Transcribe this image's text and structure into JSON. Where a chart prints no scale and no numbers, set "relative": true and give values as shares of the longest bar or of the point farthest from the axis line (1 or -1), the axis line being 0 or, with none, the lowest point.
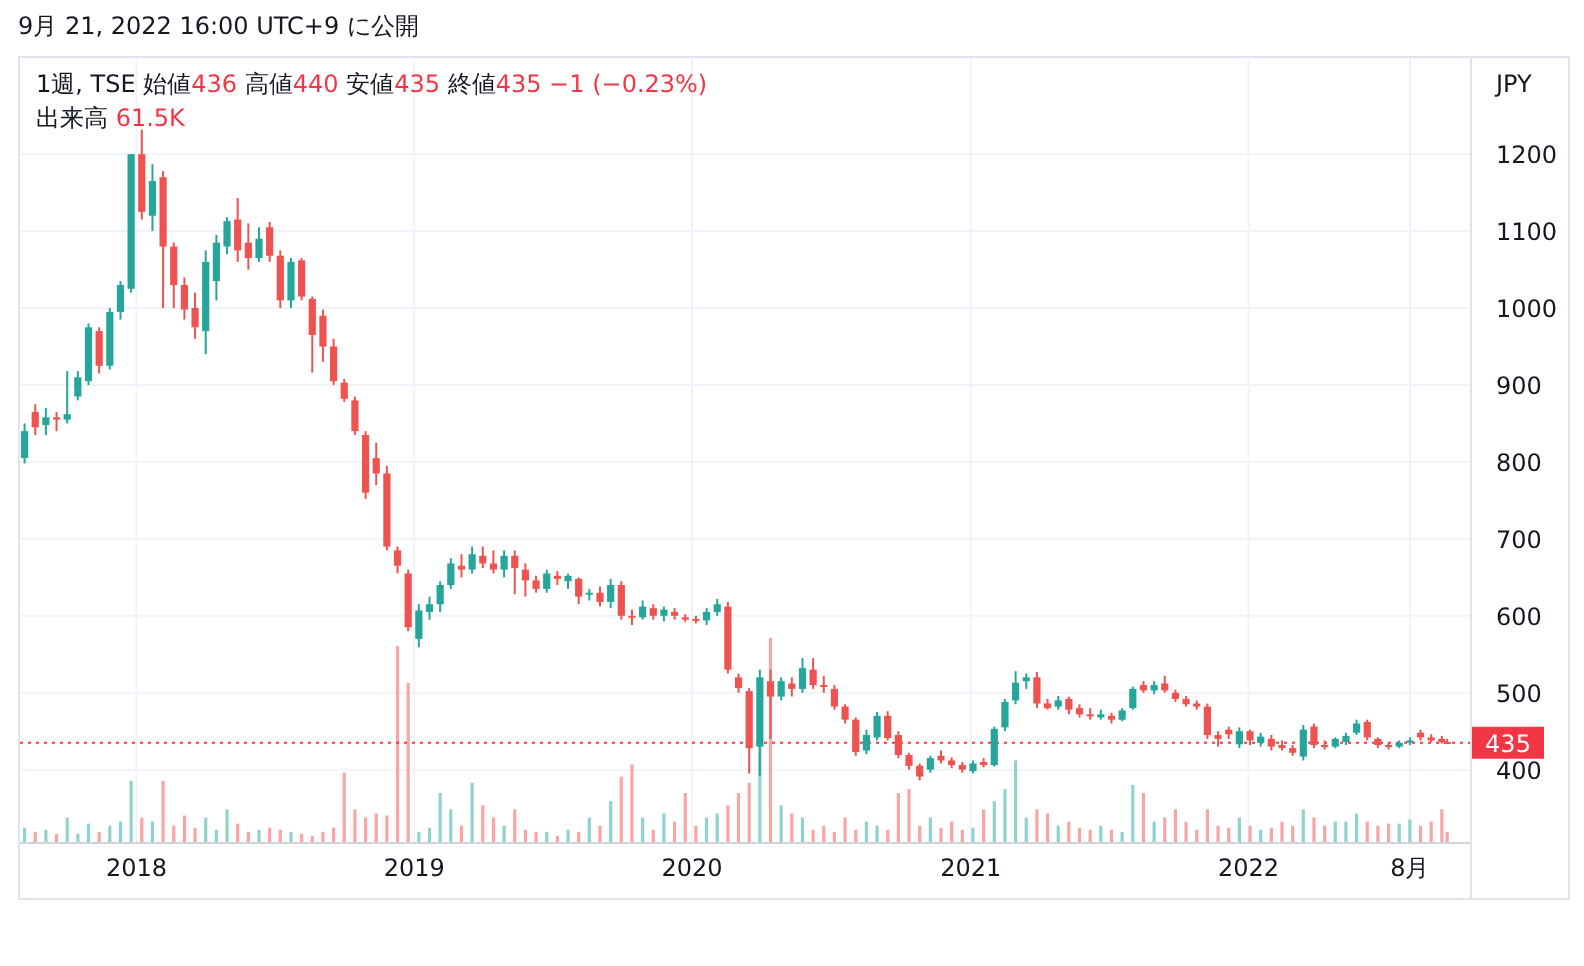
{
  "chart_data": [
    {
      "type": "candlestick",
      "title": "9月 21, 2022 16:00 UTC+9 に公開",
      "subtitle": "1週, TSE 始値436 高値440 安値435 終値435 −1 (−0.23%)",
      "ylabel": "JPY",
      "x": [
        "2017-08-07",
        "2017-08-21",
        "2017-09-04",
        "2017-09-18",
        "2017-10-02",
        "2017-10-16",
        "2017-10-30",
        "2017-11-13",
        "2017-11-27",
        "2017-12-11",
        "2017-12-25",
        "2018-01-08",
        "2018-01-22",
        "2018-02-05",
        "2018-02-19",
        "2018-03-05",
        "2018-03-19",
        "2018-04-02",
        "2018-04-16",
        "2018-04-30",
        "2018-05-14",
        "2018-05-28",
        "2018-06-11",
        "2018-06-25",
        "2018-07-09",
        "2018-07-23",
        "2018-08-06",
        "2018-08-20",
        "2018-09-03",
        "2018-09-17",
        "2018-10-01",
        "2018-10-15",
        "2018-10-29",
        "2018-11-12",
        "2018-11-26",
        "2018-12-10",
        "2018-12-24",
        "2019-01-07",
        "2019-01-21",
        "2019-02-04",
        "2019-02-18",
        "2019-03-04",
        "2019-03-18",
        "2019-04-01",
        "2019-04-15",
        "2019-04-29",
        "2019-05-13",
        "2019-05-27",
        "2019-06-10",
        "2019-06-24",
        "2019-07-08",
        "2019-07-22",
        "2019-08-05",
        "2019-08-19",
        "2019-09-02",
        "2019-09-16",
        "2019-09-30",
        "2019-10-14",
        "2019-10-28",
        "2019-11-11",
        "2019-11-25",
        "2019-12-09",
        "2019-12-23",
        "2020-01-06",
        "2020-01-20",
        "2020-02-03",
        "2020-02-17",
        "2020-03-02",
        "2020-03-16",
        "2020-03-30",
        "2020-04-13",
        "2020-04-27",
        "2020-05-11",
        "2020-05-25",
        "2020-06-08",
        "2020-06-22",
        "2020-07-06",
        "2020-07-20",
        "2020-08-03",
        "2020-08-17",
        "2020-08-31",
        "2020-09-14",
        "2020-09-28",
        "2020-10-12",
        "2020-10-26",
        "2020-11-09",
        "2020-11-23",
        "2020-12-07",
        "2020-12-21",
        "2021-01-04",
        "2021-01-18",
        "2021-02-01",
        "2021-02-15",
        "2021-03-01",
        "2021-03-15",
        "2021-03-29",
        "2021-04-12",
        "2021-04-26",
        "2021-05-10",
        "2021-05-24",
        "2021-06-07",
        "2021-06-21",
        "2021-07-05",
        "2021-07-19",
        "2021-08-02",
        "2021-08-16",
        "2021-08-30",
        "2021-09-13",
        "2021-09-27",
        "2021-10-11",
        "2021-10-25",
        "2021-11-08",
        "2021-11-22",
        "2021-12-06",
        "2021-12-20",
        "2022-01-03",
        "2022-01-17",
        "2022-01-31",
        "2022-02-14",
        "2022-02-28",
        "2022-03-14",
        "2022-03-28",
        "2022-04-11",
        "2022-04-25",
        "2022-05-09",
        "2022-05-23",
        "2022-06-06",
        "2022-06-20",
        "2022-07-04",
        "2022-07-18",
        "2022-08-01",
        "2022-08-15",
        "2022-08-29",
        "2022-09-12",
        "2022-09-19"
      ],
      "ohlc": [
        [
          805,
          850,
          798,
          840
        ],
        [
          865,
          875,
          835,
          845
        ],
        [
          848,
          870,
          835,
          858
        ],
        [
          858,
          865,
          840,
          855
        ],
        [
          855,
          918,
          850,
          862
        ],
        [
          885,
          918,
          880,
          910
        ],
        [
          905,
          980,
          900,
          975
        ],
        [
          970,
          975,
          915,
          925
        ],
        [
          925,
          1000,
          920,
          995
        ],
        [
          995,
          1035,
          985,
          1030
        ],
        [
          1025,
          1200,
          1020,
          1200
        ],
        [
          1200,
          1232,
          1115,
          1125
        ],
        [
          1120,
          1187,
          1100,
          1165
        ],
        [
          1170,
          1178,
          1000,
          1080
        ],
        [
          1080,
          1085,
          1000,
          1030
        ],
        [
          1030,
          1040,
          985,
          998
        ],
        [
          1000,
          1020,
          960,
          975
        ],
        [
          970,
          1075,
          940,
          1060
        ],
        [
          1035,
          1095,
          1010,
          1085
        ],
        [
          1080,
          1118,
          1070,
          1113
        ],
        [
          1115,
          1143,
          1060,
          1075
        ],
        [
          1085,
          1110,
          1050,
          1065
        ],
        [
          1065,
          1105,
          1060,
          1090
        ],
        [
          1105,
          1112,
          1060,
          1068
        ],
        [
          1068,
          1075,
          1000,
          1010
        ],
        [
          1010,
          1065,
          1000,
          1060
        ],
        [
          1062,
          1065,
          1010,
          1015
        ],
        [
          1012,
          1015,
          916,
          965
        ],
        [
          990,
          998,
          930,
          950
        ],
        [
          950,
          960,
          900,
          905
        ],
        [
          903,
          908,
          878,
          882
        ],
        [
          880,
          885,
          835,
          840
        ],
        [
          835,
          840,
          752,
          760
        ],
        [
          805,
          825,
          770,
          785
        ],
        [
          785,
          795,
          685,
          690
        ],
        [
          685,
          690,
          655,
          665
        ],
        [
          655,
          660,
          580,
          585
        ],
        [
          570,
          615,
          559,
          607
        ],
        [
          605,
          625,
          595,
          615
        ],
        [
          615,
          645,
          605,
          640
        ],
        [
          640,
          675,
          635,
          668
        ],
        [
          665,
          680,
          650,
          660
        ],
        [
          660,
          690,
          655,
          680
        ],
        [
          678,
          690,
          662,
          668
        ],
        [
          668,
          685,
          655,
          660
        ],
        [
          660,
          685,
          650,
          678
        ],
        [
          678,
          685,
          628,
          662
        ],
        [
          660,
          668,
          625,
          646
        ],
        [
          646,
          652,
          630,
          635
        ],
        [
          635,
          660,
          630,
          655
        ],
        [
          652,
          658,
          640,
          648
        ],
        [
          645,
          655,
          635,
          652
        ],
        [
          648,
          650,
          615,
          625
        ],
        [
          628,
          635,
          620,
          630
        ],
        [
          630,
          638,
          612,
          618
        ],
        [
          618,
          648,
          610,
          640
        ],
        [
          640,
          645,
          595,
          600
        ],
        [
          600,
          608,
          588,
          598
        ],
        [
          598,
          620,
          595,
          612
        ],
        [
          610,
          615,
          595,
          600
        ],
        [
          600,
          612,
          593,
          608
        ],
        [
          605,
          610,
          595,
          600
        ],
        [
          598,
          602,
          592,
          595
        ],
        [
          596,
          600,
          590,
          594
        ],
        [
          594,
          610,
          588,
          605
        ],
        [
          605,
          622,
          600,
          615
        ],
        [
          612,
          618,
          525,
          530
        ],
        [
          520,
          525,
          500,
          506
        ],
        [
          502,
          506,
          395,
          428
        ],
        [
          430,
          530,
          392,
          520
        ],
        [
          515,
          530,
          440,
          495
        ],
        [
          495,
          520,
          490,
          515
        ],
        [
          512,
          520,
          495,
          505
        ],
        [
          505,
          545,
          500,
          532
        ],
        [
          530,
          545,
          505,
          510
        ],
        [
          510,
          522,
          500,
          508
        ],
        [
          505,
          510,
          478,
          482
        ],
        [
          482,
          485,
          460,
          465
        ],
        [
          465,
          468,
          418,
          423
        ],
        [
          425,
          452,
          420,
          445
        ],
        [
          442,
          475,
          438,
          470
        ],
        [
          470,
          476,
          438,
          441
        ],
        [
          445,
          450,
          415,
          419
        ],
        [
          419,
          422,
          400,
          405
        ],
        [
          405,
          408,
          386,
          391
        ],
        [
          400,
          418,
          396,
          415
        ],
        [
          418,
          425,
          408,
          412
        ],
        [
          412,
          416,
          402,
          406
        ],
        [
          406,
          410,
          396,
          400
        ],
        [
          398,
          412,
          395,
          408
        ],
        [
          410,
          415,
          403,
          406
        ],
        [
          406,
          456,
          404,
          453
        ],
        [
          455,
          492,
          450,
          488
        ],
        [
          490,
          528,
          485,
          513
        ],
        [
          515,
          525,
          505,
          520
        ],
        [
          520,
          527,
          480,
          486
        ],
        [
          486,
          492,
          478,
          480
        ],
        [
          482,
          496,
          478,
          490
        ],
        [
          492,
          495,
          472,
          478
        ],
        [
          480,
          485,
          468,
          472
        ],
        [
          472,
          480,
          465,
          470
        ],
        [
          468,
          478,
          465,
          472
        ],
        [
          470,
          474,
          460,
          465
        ],
        [
          465,
          480,
          463,
          477
        ],
        [
          480,
          508,
          478,
          505
        ],
        [
          510,
          515,
          500,
          503
        ],
        [
          503,
          515,
          498,
          510
        ],
        [
          512,
          522,
          500,
          503
        ],
        [
          500,
          504,
          488,
          492
        ],
        [
          492,
          496,
          482,
          485
        ],
        [
          486,
          490,
          478,
          482
        ],
        [
          482,
          486,
          440,
          445
        ],
        [
          445,
          450,
          430,
          440
        ],
        [
          452,
          456,
          440,
          446
        ],
        [
          433,
          455,
          428,
          450
        ],
        [
          450,
          452,
          432,
          438
        ],
        [
          435,
          448,
          430,
          443
        ],
        [
          440,
          445,
          425,
          430
        ],
        [
          432,
          438,
          425,
          428
        ],
        [
          428,
          432,
          418,
          422
        ],
        [
          417,
          458,
          412,
          452
        ],
        [
          456,
          460,
          428,
          432
        ],
        [
          432,
          438,
          426,
          430
        ],
        [
          430,
          442,
          428,
          440
        ],
        [
          436,
          448,
          432,
          444
        ],
        [
          448,
          465,
          445,
          460
        ],
        [
          462,
          465,
          438,
          442
        ],
        [
          440,
          442,
          428,
          432
        ],
        [
          432,
          436,
          426,
          430
        ],
        [
          430,
          438,
          428,
          435
        ],
        [
          435,
          442,
          432,
          438
        ],
        [
          448,
          452,
          438,
          442
        ],
        [
          442,
          446,
          436,
          438
        ],
        [
          440,
          444,
          434,
          436
        ],
        [
          436,
          440,
          435,
          435
        ]
      ],
      "colors": [
        "#26a69a",
        "#ef5350",
        "#26a69a",
        "#ef5350",
        "#26a69a",
        "#26a69a",
        "#26a69a",
        "#ef5350",
        "#26a69a",
        "#26a69a",
        "#26a69a",
        "#ef5350",
        "#26a69a",
        "#ef5350",
        "#ef5350",
        "#ef5350",
        "#ef5350",
        "#26a69a",
        "#26a69a",
        "#26a69a",
        "#ef5350",
        "#ef5350",
        "#26a69a",
        "#ef5350",
        "#ef5350",
        "#26a69a",
        "#ef5350",
        "#ef5350",
        "#ef5350",
        "#ef5350",
        "#ef5350",
        "#ef5350",
        "#ef5350",
        "#ef5350",
        "#ef5350",
        "#ef5350",
        "#ef5350",
        "#26a69a",
        "#26a69a",
        "#26a69a",
        "#26a69a",
        "#ef5350",
        "#26a69a",
        "#ef5350",
        "#ef5350",
        "#26a69a",
        "#ef5350",
        "#ef5350",
        "#ef5350",
        "#26a69a",
        "#ef5350",
        "#26a69a",
        "#ef5350",
        "#26a69a",
        "#ef5350",
        "#26a69a",
        "#ef5350",
        "#ef5350",
        "#26a69a",
        "#ef5350",
        "#26a69a",
        "#ef5350",
        "#ef5350",
        "#ef5350",
        "#26a69a",
        "#26a69a",
        "#ef5350",
        "#ef5350",
        "#ef5350",
        "#26a69a",
        "#ef5350",
        "#26a69a",
        "#ef5350",
        "#26a69a",
        "#ef5350",
        "#ef5350",
        "#ef5350",
        "#ef5350",
        "#ef5350",
        "#26a69a",
        "#26a69a",
        "#ef5350",
        "#ef5350",
        "#ef5350",
        "#ef5350",
        "#26a69a",
        "#ef5350",
        "#ef5350",
        "#ef5350",
        "#26a69a",
        "#ef5350",
        "#26a69a",
        "#26a69a",
        "#26a69a",
        "#26a69a",
        "#ef5350",
        "#ef5350",
        "#26a69a",
        "#ef5350",
        "#ef5350",
        "#ef5350",
        "#26a69a",
        "#ef5350",
        "#26a69a",
        "#26a69a",
        "#ef5350",
        "#26a69a",
        "#ef5350",
        "#ef5350",
        "#ef5350",
        "#ef5350",
        "#ef5350",
        "#ef5350",
        "#ef5350",
        "#26a69a",
        "#ef5350",
        "#26a69a",
        "#ef5350",
        "#ef5350",
        "#ef5350",
        "#26a69a",
        "#ef5350",
        "#ef5350",
        "#26a69a",
        "#26a69a",
        "#26a69a",
        "#ef5350",
        "#ef5350",
        "#ef5350",
        "#26a69a",
        "#26a69a",
        "#ef5350",
        "#ef5350",
        "#ef5350",
        "#ef5350"
      ],
      "xlim": [
        "2017-08-01",
        "2022-10-19"
      ],
      "xticks": [
        {
          "value": "2018-01-01",
          "label": "2018"
        },
        {
          "value": "2019-01-01",
          "label": "2019"
        },
        {
          "value": "2020-01-01",
          "label": "2020"
        },
        {
          "value": "2021-01-01",
          "label": "2021"
        },
        {
          "value": "2022-01-01",
          "label": "2022"
        },
        {
          "value": "2022-08-01",
          "label": "8月"
        }
      ],
      "ylim": [
        306,
        1325
      ],
      "yticks": [
        400,
        500,
        600,
        700,
        800,
        900,
        1000,
        1100,
        1200
      ],
      "ref_lines": [
        {
          "axis": "y",
          "value": 435,
          "label": "435",
          "color": "#f23645",
          "line_style": "dotted"
        }
      ],
      "grid": true
    },
    {
      "type": "bar",
      "relative": true,
      "annotations": [
        "出来高 61.5K"
      ],
      "x": [
        "2017-08-07",
        "2017-08-21",
        "2017-09-04",
        "2017-09-18",
        "2017-10-02",
        "2017-10-16",
        "2017-10-30",
        "2017-11-13",
        "2017-11-27",
        "2017-12-11",
        "2017-12-25",
        "2018-01-08",
        "2018-01-22",
        "2018-02-05",
        "2018-02-19",
        "2018-03-05",
        "2018-03-19",
        "2018-04-02",
        "2018-04-16",
        "2018-04-30",
        "2018-05-14",
        "2018-05-28",
        "2018-06-11",
        "2018-06-25",
        "2018-07-09",
        "2018-07-23",
        "2018-08-06",
        "2018-08-20",
        "2018-09-03",
        "2018-09-17",
        "2018-10-01",
        "2018-10-15",
        "2018-10-29",
        "2018-11-12",
        "2018-11-26",
        "2018-12-10",
        "2018-12-24",
        "2019-01-07",
        "2019-01-21",
        "2019-02-04",
        "2019-02-18",
        "2019-03-04",
        "2019-03-18",
        "2019-04-01",
        "2019-04-15",
        "2019-04-29",
        "2019-05-13",
        "2019-05-27",
        "2019-06-10",
        "2019-06-24",
        "2019-07-08",
        "2019-07-22",
        "2019-08-05",
        "2019-08-19",
        "2019-09-02",
        "2019-09-16",
        "2019-09-30",
        "2019-10-14",
        "2019-10-28",
        "2019-11-11",
        "2019-11-25",
        "2019-12-09",
        "2019-12-23",
        "2020-01-06",
        "2020-01-20",
        "2020-02-03",
        "2020-02-17",
        "2020-03-02",
        "2020-03-16",
        "2020-03-30",
        "2020-04-13",
        "2020-04-27",
        "2020-05-11",
        "2020-05-25",
        "2020-06-08",
        "2020-06-22",
        "2020-07-06",
        "2020-07-20",
        "2020-08-03",
        "2020-08-17",
        "2020-08-31",
        "2020-09-14",
        "2020-09-28",
        "2020-10-12",
        "2020-10-26",
        "2020-11-09",
        "2020-11-23",
        "2020-12-07",
        "2020-12-21",
        "2021-01-04",
        "2021-01-18",
        "2021-02-01",
        "2021-02-15",
        "2021-03-01",
        "2021-03-15",
        "2021-03-29",
        "2021-04-12",
        "2021-04-26",
        "2021-05-10",
        "2021-05-24",
        "2021-06-07",
        "2021-06-21",
        "2021-07-05",
        "2021-07-19",
        "2021-08-02",
        "2021-08-16",
        "2021-08-30",
        "2021-09-13",
        "2021-09-27",
        "2021-10-11",
        "2021-10-25",
        "2021-11-08",
        "2021-11-22",
        "2021-12-06",
        "2021-12-20",
        "2022-01-03",
        "2022-01-17",
        "2022-01-31",
        "2022-02-14",
        "2022-02-28",
        "2022-03-14",
        "2022-03-28",
        "2022-04-11",
        "2022-04-25",
        "2022-05-09",
        "2022-05-23",
        "2022-06-06",
        "2022-06-20",
        "2022-07-04",
        "2022-07-18",
        "2022-08-01",
        "2022-08-15",
        "2022-08-29",
        "2022-09-12",
        "2022-09-19"
      ],
      "xlim": [
        "2017-08-01",
        "2022-10-19"
      ],
      "values": [
        0.07,
        0.05,
        0.06,
        0.04,
        0.12,
        0.04,
        0.09,
        0.05,
        0.08,
        0.1,
        0.3,
        0.12,
        0.1,
        0.3,
        0.08,
        0.13,
        0.07,
        0.12,
        0.06,
        0.16,
        0.09,
        0.05,
        0.06,
        0.07,
        0.06,
        0.05,
        0.04,
        0.03,
        0.05,
        0.07,
        0.34,
        0.16,
        0.12,
        0.14,
        0.13,
        0.96,
        0.78,
        0.05,
        0.07,
        0.24,
        0.16,
        0.08,
        0.29,
        0.18,
        0.12,
        0.08,
        0.16,
        0.06,
        0.05,
        0.05,
        0.03,
        0.06,
        0.05,
        0.12,
        0.08,
        0.2,
        0.32,
        0.38,
        0.12,
        0.06,
        0.14,
        0.1,
        0.24,
        0.08,
        0.12,
        0.14,
        0.18,
        0.24,
        0.29,
        0.48,
        1,
        0.18,
        0.14,
        0.12,
        0.06,
        0.08,
        0.05,
        0.12,
        0.06,
        0.1,
        0.08,
        0.06,
        0.24,
        0.26,
        0.08,
        0.12,
        0.07,
        0.1,
        0.06,
        0.07,
        0.16,
        0.2,
        0.26,
        0.4,
        0.12,
        0.16,
        0.14,
        0.08,
        0.1,
        0.07,
        0.06,
        0.08,
        0.06,
        0.05,
        0.28,
        0.24,
        0.1,
        0.12,
        0.16,
        0.1,
        0.06,
        0.16,
        0.08,
        0.07,
        0.12,
        0.08,
        0.06,
        0.07,
        0.1,
        0.08,
        0.16,
        0.12,
        0.08,
        0.1,
        0.1,
        0.14,
        0.1,
        0.08,
        0.09,
        0.09,
        0.11,
        0.08,
        0.1,
        0.16,
        0.05
      ],
      "colors": [
        "#8fd3cc",
        "#f7a6a4",
        "#8fd3cc",
        "#f7a6a4",
        "#8fd3cc",
        "#8fd3cc",
        "#8fd3cc",
        "#f7a6a4",
        "#8fd3cc",
        "#8fd3cc",
        "#8fd3cc",
        "#f7a6a4",
        "#8fd3cc",
        "#f7a6a4",
        "#f7a6a4",
        "#f7a6a4",
        "#f7a6a4",
        "#8fd3cc",
        "#8fd3cc",
        "#8fd3cc",
        "#f7a6a4",
        "#f7a6a4",
        "#8fd3cc",
        "#f7a6a4",
        "#f7a6a4",
        "#8fd3cc",
        "#f7a6a4",
        "#f7a6a4",
        "#f7a6a4",
        "#f7a6a4",
        "#f7a6a4",
        "#f7a6a4",
        "#f7a6a4",
        "#f7a6a4",
        "#f7a6a4",
        "#f7a6a4",
        "#f7a6a4",
        "#8fd3cc",
        "#8fd3cc",
        "#8fd3cc",
        "#8fd3cc",
        "#f7a6a4",
        "#8fd3cc",
        "#f7a6a4",
        "#f7a6a4",
        "#8fd3cc",
        "#f7a6a4",
        "#f7a6a4",
        "#f7a6a4",
        "#8fd3cc",
        "#f7a6a4",
        "#8fd3cc",
        "#f7a6a4",
        "#8fd3cc",
        "#f7a6a4",
        "#8fd3cc",
        "#f7a6a4",
        "#f7a6a4",
        "#8fd3cc",
        "#f7a6a4",
        "#8fd3cc",
        "#f7a6a4",
        "#f7a6a4",
        "#f7a6a4",
        "#8fd3cc",
        "#8fd3cc",
        "#f7a6a4",
        "#f7a6a4",
        "#f7a6a4",
        "#8fd3cc",
        "#f7a6a4",
        "#8fd3cc",
        "#f7a6a4",
        "#8fd3cc",
        "#f7a6a4",
        "#f7a6a4",
        "#f7a6a4",
        "#f7a6a4",
        "#f7a6a4",
        "#8fd3cc",
        "#8fd3cc",
        "#f7a6a4",
        "#f7a6a4",
        "#f7a6a4",
        "#f7a6a4",
        "#8fd3cc",
        "#f7a6a4",
        "#f7a6a4",
        "#f7a6a4",
        "#8fd3cc",
        "#f7a6a4",
        "#8fd3cc",
        "#8fd3cc",
        "#8fd3cc",
        "#8fd3cc",
        "#f7a6a4",
        "#f7a6a4",
        "#8fd3cc",
        "#f7a6a4",
        "#f7a6a4",
        "#f7a6a4",
        "#8fd3cc",
        "#f7a6a4",
        "#8fd3cc",
        "#8fd3cc",
        "#f7a6a4",
        "#8fd3cc",
        "#f7a6a4",
        "#f7a6a4",
        "#f7a6a4",
        "#f7a6a4",
        "#f7a6a4",
        "#f7a6a4",
        "#f7a6a4",
        "#8fd3cc",
        "#f7a6a4",
        "#8fd3cc",
        "#f7a6a4",
        "#f7a6a4",
        "#f7a6a4",
        "#8fd3cc",
        "#f7a6a4",
        "#f7a6a4",
        "#8fd3cc",
        "#8fd3cc",
        "#8fd3cc",
        "#f7a6a4",
        "#f7a6a4",
        "#f7a6a4",
        "#8fd3cc",
        "#8fd3cc",
        "#f7a6a4",
        "#f7a6a4",
        "#f7a6a4",
        "#f7a6a4"
      ]
    }
  ]
}
